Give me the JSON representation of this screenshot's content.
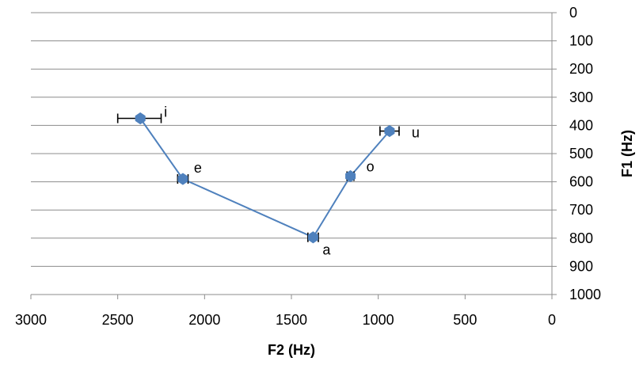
{
  "chart_data": {
    "type": "scatter",
    "title": "",
    "xlabel": "F2 (Hz)",
    "ylabel": "F1 (Hz)",
    "xlim": [
      3000,
      0
    ],
    "ylim": [
      0,
      1000
    ],
    "x_reversed": true,
    "y_reversed": true,
    "y_axis_side": "right",
    "x_ticks": [
      "3000",
      "2500",
      "2000",
      "1500",
      "1000",
      "500",
      "0"
    ],
    "y_ticks": [
      "0",
      "100",
      "200",
      "300",
      "400",
      "500",
      "600",
      "700",
      "800",
      "900",
      "1000"
    ],
    "grid": "horizontal",
    "legend": "none",
    "line_color": "#4f81bd",
    "marker_color": "#4f81bd",
    "series": [
      {
        "connected": true,
        "points": [
          {
            "label": "i",
            "x": 2370,
            "y": 375,
            "x_err": [
              2500,
              2250
            ]
          },
          {
            "label": "e",
            "x": 2125,
            "y": 590,
            "x_err": [
              2155,
              2095
            ]
          },
          {
            "label": "a",
            "x": 1375,
            "y": 797,
            "x_err": [
              1405,
              1345
            ]
          },
          {
            "label": "o",
            "x": 1160,
            "y": 580,
            "x_err": [
              1180,
              1140
            ]
          },
          {
            "label": "u",
            "x": 935,
            "y": 420,
            "x_err": [
              990,
              880
            ]
          }
        ]
      }
    ]
  }
}
